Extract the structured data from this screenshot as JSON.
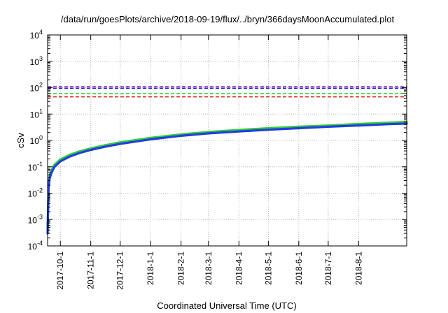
{
  "chart_data": {
    "type": "line",
    "title": "/data/run/goesPlots/archive/2018-09-19/flux/../bryn/366daysMoonAccumulated.plot",
    "xlabel": "Coordinated Universal Time (UTC)",
    "ylabel": "cSv",
    "yscale": "log",
    "ylim": [
      0.0001,
      10000
    ],
    "xlim": [
      "2017-09-18",
      "2018-09-19"
    ],
    "grid": true,
    "y_ticks": [
      {
        "value": 0.0001,
        "base": "10",
        "exp": "-4"
      },
      {
        "value": 0.001,
        "base": "10",
        "exp": "-3"
      },
      {
        "value": 0.01,
        "base": "10",
        "exp": "-2"
      },
      {
        "value": 0.1,
        "base": "10",
        "exp": "-1"
      },
      {
        "value": 1,
        "base": "10",
        "exp": "0"
      },
      {
        "value": 10,
        "base": "10",
        "exp": "1"
      },
      {
        "value": 100,
        "base": "10",
        "exp": "2"
      },
      {
        "value": 1000,
        "base": "10",
        "exp": "3"
      },
      {
        "value": 10000,
        "base": "10",
        "exp": "4"
      }
    ],
    "x_ticks": [
      {
        "label": "2017-10-1",
        "date": "2017-10-01"
      },
      {
        "label": "2017-11-1",
        "date": "2017-11-01"
      },
      {
        "label": "2017-12-1",
        "date": "2017-12-01"
      },
      {
        "label": "2018-1-1",
        "date": "2018-01-01"
      },
      {
        "label": "2018-2-1",
        "date": "2018-02-01"
      },
      {
        "label": "2018-3-1",
        "date": "2018-03-01"
      },
      {
        "label": "2018-4-1",
        "date": "2018-04-01"
      },
      {
        "label": "2018-5-1",
        "date": "2018-05-01"
      },
      {
        "label": "2018-6-1",
        "date": "2018-06-01"
      },
      {
        "label": "2018-7-1",
        "date": "2018-07-01"
      },
      {
        "label": "2018-8-1",
        "date": "2018-08-01"
      }
    ],
    "reference_lines": [
      {
        "value": 110,
        "color": "#9933cc"
      },
      {
        "value": 95,
        "color": "#2222cc"
      },
      {
        "value": 60,
        "color": "#33cc33"
      },
      {
        "value": 45,
        "color": "#dd2222"
      }
    ],
    "series": [
      {
        "color": "#33cc33",
        "x": [
          "2017-09-18",
          "2017-09-19",
          "2017-09-20",
          "2017-09-22",
          "2017-09-25",
          "2017-10-01",
          "2017-10-10",
          "2017-10-20",
          "2017-11-01",
          "2017-11-15",
          "2017-12-01",
          "2018-01-01",
          "2018-02-01",
          "2018-03-01",
          "2018-04-01",
          "2018-05-01",
          "2018-06-01",
          "2018-07-01",
          "2018-08-01",
          "2018-09-01",
          "2018-09-19"
        ],
        "values": [
          0.0004,
          0.02,
          0.045,
          0.075,
          0.12,
          0.19,
          0.28,
          0.38,
          0.5,
          0.65,
          0.85,
          1.25,
          1.7,
          2.1,
          2.5,
          2.9,
          3.3,
          3.7,
          4.2,
          4.75,
          5.0
        ]
      },
      {
        "color": "#1f3fe0",
        "x": [
          "2017-09-18",
          "2017-09-19",
          "2017-09-20",
          "2017-09-22",
          "2017-09-25",
          "2017-10-01",
          "2017-10-10",
          "2017-10-20",
          "2017-11-01",
          "2017-11-15",
          "2017-12-01",
          "2018-01-01",
          "2018-02-01",
          "2018-03-01",
          "2018-04-01",
          "2018-05-01",
          "2018-06-01",
          "2018-07-01",
          "2018-08-01",
          "2018-09-01",
          "2018-09-19"
        ],
        "values": [
          0.0003,
          0.015,
          0.035,
          0.06,
          0.1,
          0.16,
          0.24,
          0.33,
          0.44,
          0.57,
          0.74,
          1.1,
          1.5,
          1.85,
          2.2,
          2.55,
          2.9,
          3.3,
          3.7,
          4.15,
          4.35
        ]
      }
    ]
  }
}
